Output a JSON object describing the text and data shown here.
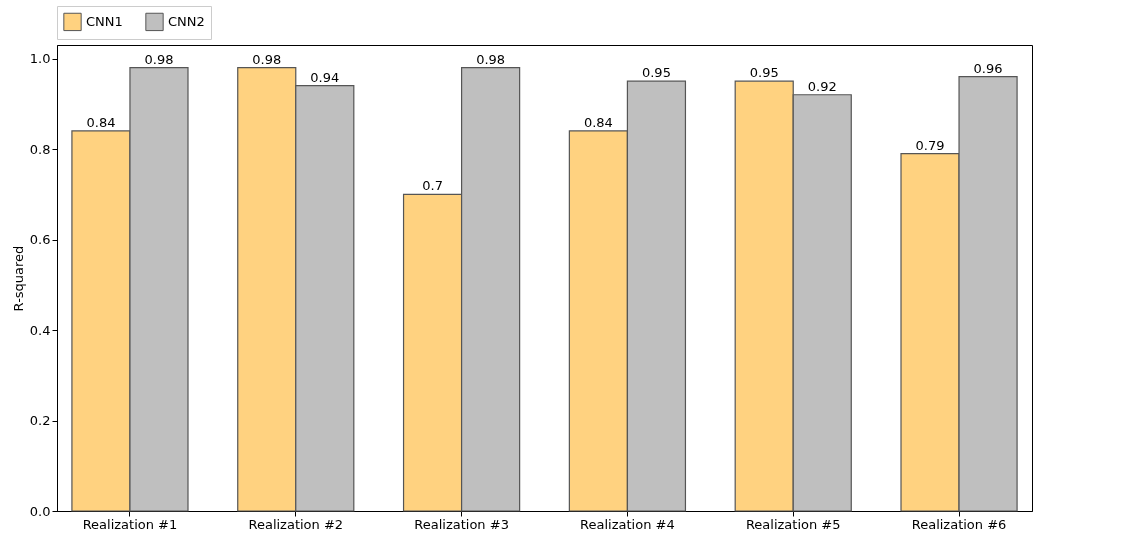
{
  "chart_data": {
    "type": "bar",
    "ylabel": "R-squared",
    "categories": [
      "Realization #1",
      "Realization #2",
      "Realization #3",
      "Realization #4",
      "Realization #5",
      "Realization #6"
    ],
    "series": [
      {
        "name": "CNN1",
        "color": "#ffd280",
        "values": [
          0.84,
          0.98,
          0.7,
          0.84,
          0.95,
          0.79
        ]
      },
      {
        "name": "CNN2",
        "color": "#bfbfbf",
        "values": [
          0.98,
          0.94,
          0.98,
          0.95,
          0.92,
          0.96
        ]
      }
    ],
    "ylim": [
      0,
      1.03
    ],
    "yticks": [
      {
        "value": 0,
        "label": "0.0"
      },
      {
        "value": 0.2,
        "label": "0.2"
      },
      {
        "value": 0.4,
        "label": "0.4"
      },
      {
        "value": 0.6,
        "label": "0.6"
      },
      {
        "value": 0.8,
        "label": "0.8"
      },
      {
        "value": 1,
        "label": "1.0"
      }
    ],
    "data_labels": true,
    "legend": "top",
    "grid": false
  }
}
